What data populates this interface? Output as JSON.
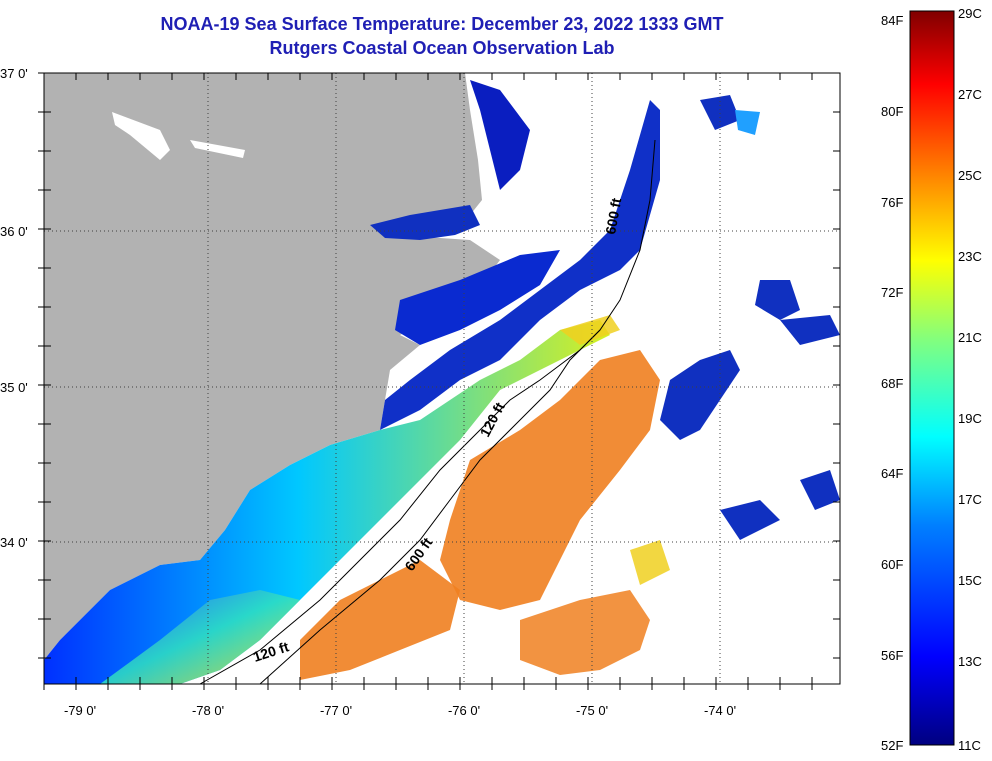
{
  "title": "NOAA-19 Sea Surface Temperature:  December 23, 2022 1333 GMT",
  "subtitle": "Rutgers Coastal Ocean Observation Lab",
  "lat_labels": [
    "37 0'",
    "36 0'",
    "35 0'",
    "34 0'"
  ],
  "lon_labels": [
    "-79 0'",
    "-78 0'",
    "-77 0'",
    "-76 0'",
    "-75 0'",
    "-74 0'"
  ],
  "isobath_labels": [
    "600 ft",
    "120 ft",
    "600 ft",
    "120 ft"
  ],
  "colorbar": {
    "fahrenheit": [
      "84F",
      "80F",
      "76F",
      "72F",
      "68F",
      "64F",
      "60F",
      "56F",
      "52F"
    ],
    "celsius": [
      "29C",
      "27C",
      "25C",
      "23C",
      "21C",
      "19C",
      "17C",
      "15C",
      "13C",
      "11C"
    ],
    "colors": [
      "#000080",
      "#0000ff",
      "#0080ff",
      "#00ffff",
      "#80ff80",
      "#ffff00",
      "#ff8000",
      "#ff0000",
      "#800000"
    ]
  },
  "colors": {
    "land": "#b2b2b2",
    "title": "#1f1fb4",
    "no_data": "#ffffff"
  }
}
